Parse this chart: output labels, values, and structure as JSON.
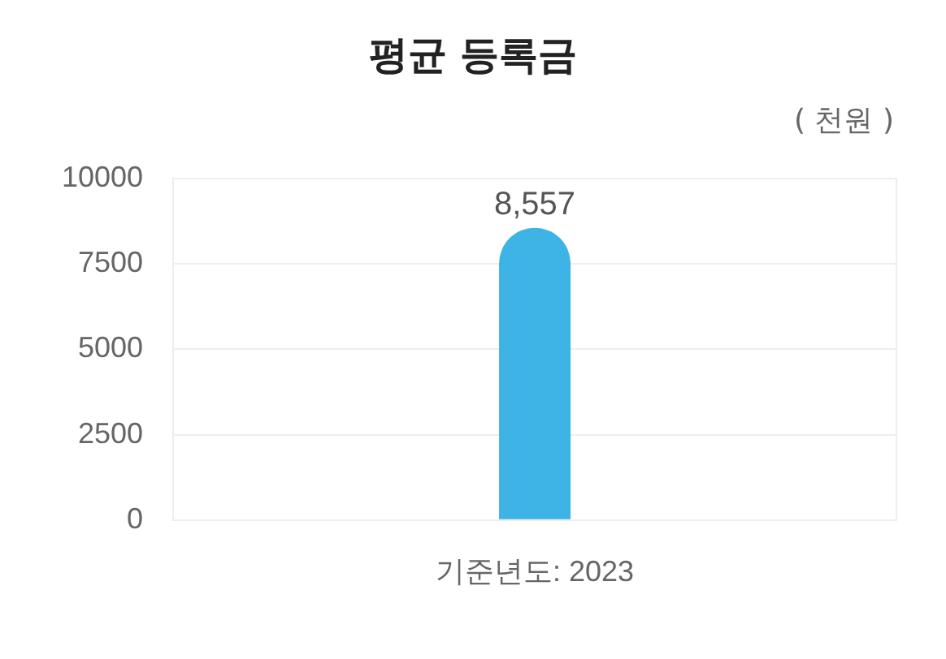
{
  "chart_data": {
    "type": "bar",
    "title": "평균 등록금",
    "annotations": [
      "( 천원 )"
    ],
    "categories": [
      "기준년도: 2023"
    ],
    "series": [
      {
        "color": "#3db3e6",
        "values": [
          8557
        ]
      }
    ],
    "value_labels": [
      "8,557"
    ],
    "ylim": [
      0,
      10000
    ],
    "yticks": [
      0,
      2500,
      5000,
      7500,
      10000
    ],
    "grid": "y",
    "legend": false
  }
}
